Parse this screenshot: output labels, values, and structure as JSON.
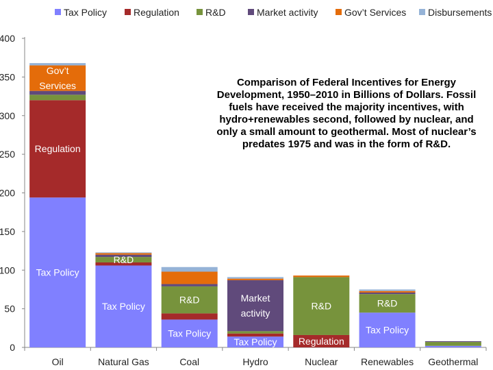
{
  "chart_data": {
    "type": "bar",
    "stacked": true,
    "categories": [
      "Oil",
      "Natural Gas",
      "Coal",
      "Hydro",
      "Nuclear",
      "Renewables",
      "Geothermal"
    ],
    "ylim": [
      0,
      400
    ],
    "yticks": [
      0,
      50,
      100,
      150,
      200,
      250,
      300,
      350,
      400
    ],
    "legend_position": "top",
    "grid": false,
    "series": [
      {
        "name": "Tax Policy",
        "color": "#8080ff",
        "values": [
          194,
          106,
          36,
          14,
          0,
          45,
          2
        ]
      },
      {
        "name": "Regulation",
        "color": "#a52a2a",
        "values": [
          126,
          4,
          8,
          4,
          16,
          0,
          0
        ]
      },
      {
        "name": "R&D",
        "color": "#77933c",
        "values": [
          7,
          7,
          35,
          3,
          75,
          24,
          5
        ]
      },
      {
        "name": "Market activity",
        "color": "#604a7b",
        "values": [
          5,
          3,
          3,
          66,
          0,
          2,
          1
        ]
      },
      {
        "name": "Gov't Services",
        "color": "#e46c0a",
        "values": [
          33,
          2,
          16,
          2,
          2,
          2,
          0
        ]
      },
      {
        "name": "Disbursements",
        "color": "#95b3d7",
        "values": [
          3,
          1,
          6,
          2,
          0,
          2,
          0
        ]
      }
    ],
    "segment_labels": [
      {
        "category": "Oil",
        "series": "Tax Policy",
        "text": "Tax Policy"
      },
      {
        "category": "Oil",
        "series": "Regulation",
        "text": "Regulation"
      },
      {
        "category": "Oil",
        "series": "Gov't Services",
        "text": "Gov’t\nServices"
      },
      {
        "category": "Natural Gas",
        "series": "Tax Policy",
        "text": "Tax Policy"
      },
      {
        "category": "Natural Gas",
        "series": "R&D",
        "text": "R&D"
      },
      {
        "category": "Coal",
        "series": "Tax Policy",
        "text": "Tax Policy"
      },
      {
        "category": "Coal",
        "series": "R&D",
        "text": "R&D"
      },
      {
        "category": "Hydro",
        "series": "Tax Policy",
        "text": "Tax Policy"
      },
      {
        "category": "Hydro",
        "series": "Market activity",
        "text": "Market\nactivity"
      },
      {
        "category": "Nuclear",
        "series": "Regulation",
        "text": "Regulation"
      },
      {
        "category": "Nuclear",
        "series": "R&D",
        "text": "R&D"
      },
      {
        "category": "Renewables",
        "series": "Tax Policy",
        "text": "Tax Policy"
      },
      {
        "category": "Renewables",
        "series": "R&D",
        "text": "R&D"
      }
    ],
    "legend": [
      "Tax Policy",
      "Regulation",
      "R&D",
      "Market activity",
      "Gov’t Services",
      "Disbursements"
    ],
    "annotation": "Comparison of Federal Incentives for Energy Development, 1950–2010 in Billions of Dollars. Fossil fuels have received the majority incentives, with hydro+renewables second, followed by nuclear, and only a small amount to geothermal. Most of nuclear’s predates 1975 and was in the form of R&D."
  }
}
